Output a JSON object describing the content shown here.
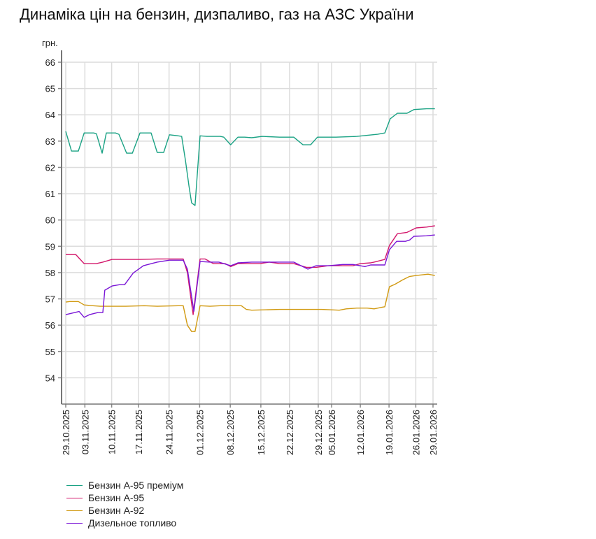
{
  "title": "Динаміка цін на бензин, дизпаливо, газ на АЗС України",
  "chart_data": {
    "type": "line",
    "title": "Динаміка цін на бензин, дизпаливо, газ на АЗС України",
    "ylabel": "грн.",
    "xlabel": "",
    "ylim": [
      53,
      66
    ],
    "xlim": [
      -1.1,
      97
    ],
    "yticks": [
      54,
      55,
      56,
      57,
      58,
      59,
      60,
      61,
      62,
      63,
      64,
      65,
      66
    ],
    "grid": true,
    "legend_position": "bottom-left",
    "xticks": [
      {
        "i": 0,
        "label": "29.10.2025"
      },
      {
        "i": 5,
        "label": "03.11.2025"
      },
      {
        "i": 12,
        "label": "10.11.2025"
      },
      {
        "i": 19,
        "label": "17.11.2025"
      },
      {
        "i": 27,
        "label": "24.11.2025"
      },
      {
        "i": 35,
        "label": "01.12.2025"
      },
      {
        "i": 43,
        "label": "08.12.2025"
      },
      {
        "i": 51,
        "label": "15.12.2025"
      },
      {
        "i": 58.5,
        "label": "22.12.2025"
      },
      {
        "i": 66,
        "label": "29.12.2025"
      },
      {
        "i": 69.5,
        "label": "05.01.2026"
      },
      {
        "i": 77,
        "label": "12.01.2026"
      },
      {
        "i": 84.5,
        "label": "19.01.2026"
      },
      {
        "i": 91.5,
        "label": "26.01.2026"
      },
      {
        "i": 96,
        "label": "29.01.2026"
      }
    ],
    "series": [
      {
        "name": "Бензин А-95 преміум",
        "color": "#1aa284",
        "points": [
          [
            0,
            63.37
          ],
          [
            1.5,
            62.62
          ],
          [
            3.3,
            62.62
          ],
          [
            4.8,
            63.31
          ],
          [
            7.3,
            63.31
          ],
          [
            8,
            63.28
          ],
          [
            9.5,
            62.54
          ],
          [
            10.6,
            63.31
          ],
          [
            13,
            63.31
          ],
          [
            13.9,
            63.26
          ],
          [
            15.9,
            62.54
          ],
          [
            17.4,
            62.54
          ],
          [
            19.4,
            63.31
          ],
          [
            22.3,
            63.31
          ],
          [
            23.9,
            62.57
          ],
          [
            25.6,
            62.57
          ],
          [
            27.1,
            63.24
          ],
          [
            28.9,
            63.21
          ],
          [
            30.3,
            63.18
          ],
          [
            31.3,
            62.25
          ],
          [
            32.2,
            61.3
          ],
          [
            32.9,
            60.65
          ],
          [
            33.8,
            60.55
          ],
          [
            35.1,
            63.2
          ],
          [
            36.9,
            63.18
          ],
          [
            40.4,
            63.18
          ],
          [
            41.3,
            63.15
          ],
          [
            43.1,
            62.86
          ],
          [
            45,
            63.15
          ],
          [
            46.8,
            63.15
          ],
          [
            48.6,
            63.13
          ],
          [
            51.4,
            63.18
          ],
          [
            55.9,
            63.15
          ],
          [
            59.6,
            63.15
          ],
          [
            62,
            62.86
          ],
          [
            64,
            62.86
          ],
          [
            65.8,
            63.15
          ],
          [
            70.6,
            63.15
          ],
          [
            76.1,
            63.18
          ],
          [
            81.5,
            63.26
          ],
          [
            83.4,
            63.31
          ],
          [
            84.8,
            63.85
          ],
          [
            86.7,
            64.06
          ],
          [
            89.2,
            64.06
          ],
          [
            91,
            64.2
          ],
          [
            94.3,
            64.23
          ],
          [
            96.5,
            64.23
          ]
        ]
      },
      {
        "name": "Бензин А-95",
        "color": "#d3186c",
        "points": [
          [
            0,
            58.69
          ],
          [
            2.6,
            58.69
          ],
          [
            4.8,
            58.34
          ],
          [
            8,
            58.34
          ],
          [
            9.7,
            58.4
          ],
          [
            12.1,
            58.5
          ],
          [
            19.4,
            58.5
          ],
          [
            23.9,
            58.52
          ],
          [
            27.1,
            58.52
          ],
          [
            30.7,
            58.52
          ],
          [
            31.8,
            58.0
          ],
          [
            33.3,
            56.4
          ],
          [
            35.1,
            58.52
          ],
          [
            36.4,
            58.52
          ],
          [
            38.6,
            58.34
          ],
          [
            41.7,
            58.34
          ],
          [
            43.1,
            58.23
          ],
          [
            45,
            58.34
          ],
          [
            50.8,
            58.34
          ],
          [
            53.2,
            58.4
          ],
          [
            55.9,
            58.34
          ],
          [
            59.6,
            58.34
          ],
          [
            62.9,
            58.2
          ],
          [
            65.4,
            58.2
          ],
          [
            68.7,
            58.26
          ],
          [
            75.1,
            58.26
          ],
          [
            77,
            58.34
          ],
          [
            79.7,
            58.37
          ],
          [
            80.6,
            58.4
          ],
          [
            83.4,
            58.5
          ],
          [
            84.6,
            59.03
          ],
          [
            86.7,
            59.48
          ],
          [
            89.2,
            59.53
          ],
          [
            91.6,
            59.7
          ],
          [
            94.3,
            59.73
          ],
          [
            96.5,
            59.78
          ]
        ]
      },
      {
        "name": "Бензин А-92",
        "color": "#d19a12",
        "points": [
          [
            0,
            56.88
          ],
          [
            1.1,
            56.9
          ],
          [
            3.3,
            56.9
          ],
          [
            4.8,
            56.77
          ],
          [
            7.1,
            56.74
          ],
          [
            9,
            56.72
          ],
          [
            12.1,
            56.72
          ],
          [
            15.7,
            56.72
          ],
          [
            20.5,
            56.74
          ],
          [
            23.9,
            56.72
          ],
          [
            29.4,
            56.74
          ],
          [
            30.7,
            56.74
          ],
          [
            31.8,
            56.0
          ],
          [
            32.9,
            55.76
          ],
          [
            33.8,
            55.76
          ],
          [
            35.1,
            56.74
          ],
          [
            37.7,
            56.72
          ],
          [
            40.4,
            56.74
          ],
          [
            45.9,
            56.74
          ],
          [
            47.2,
            56.6
          ],
          [
            48.6,
            56.57
          ],
          [
            55.9,
            56.6
          ],
          [
            59.6,
            56.6
          ],
          [
            66.9,
            56.6
          ],
          [
            71.5,
            56.57
          ],
          [
            73.3,
            56.62
          ],
          [
            76.1,
            56.65
          ],
          [
            78.8,
            56.65
          ],
          [
            80.6,
            56.62
          ],
          [
            82.6,
            56.68
          ],
          [
            83.4,
            56.7
          ],
          [
            84.6,
            57.46
          ],
          [
            86.1,
            57.56
          ],
          [
            88,
            57.72
          ],
          [
            89.8,
            57.85
          ],
          [
            91.6,
            57.89
          ],
          [
            94.7,
            57.94
          ],
          [
            96.5,
            57.89
          ]
        ]
      },
      {
        "name": "Дизельное топливо",
        "color": "#7a16d6",
        "points": [
          [
            0,
            56.4
          ],
          [
            3.5,
            56.52
          ],
          [
            4.8,
            56.3
          ],
          [
            6.2,
            56.4
          ],
          [
            8.4,
            56.48
          ],
          [
            9.7,
            56.48
          ],
          [
            10.2,
            57.33
          ],
          [
            12.1,
            57.49
          ],
          [
            14.1,
            57.54
          ],
          [
            15.4,
            57.54
          ],
          [
            17.6,
            57.98
          ],
          [
            20.3,
            58.26
          ],
          [
            23.9,
            58.4
          ],
          [
            27.1,
            58.47
          ],
          [
            30.7,
            58.47
          ],
          [
            31.8,
            58.13
          ],
          [
            33.5,
            56.53
          ],
          [
            35.1,
            58.42
          ],
          [
            37.7,
            58.4
          ],
          [
            40,
            58.4
          ],
          [
            43.1,
            58.26
          ],
          [
            45,
            58.37
          ],
          [
            48.6,
            58.4
          ],
          [
            51.4,
            58.4
          ],
          [
            55.9,
            58.4
          ],
          [
            59.6,
            58.4
          ],
          [
            63.3,
            58.13
          ],
          [
            65.4,
            58.26
          ],
          [
            68.7,
            58.26
          ],
          [
            72.4,
            58.31
          ],
          [
            75.1,
            58.31
          ],
          [
            78.2,
            58.23
          ],
          [
            79.7,
            58.29
          ],
          [
            83.4,
            58.29
          ],
          [
            84.6,
            58.87
          ],
          [
            86.5,
            59.19
          ],
          [
            88.8,
            59.19
          ],
          [
            89.9,
            59.24
          ],
          [
            91,
            59.38
          ],
          [
            94.3,
            59.4
          ],
          [
            96.5,
            59.43
          ]
        ]
      }
    ]
  }
}
